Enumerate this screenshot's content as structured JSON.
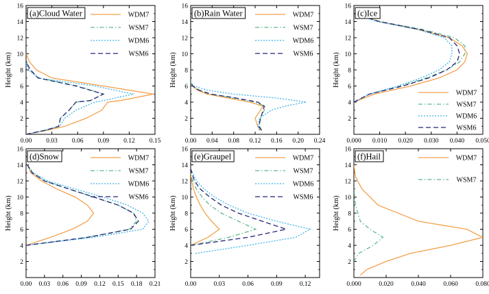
{
  "figure": {
    "ylabel": "Height (km)"
  },
  "style": {
    "WDM7": {
      "color": "#f4a04a",
      "dash": ""
    },
    "WSM7": {
      "color": "#5cb88a",
      "dash": "6 3 1.5 3"
    },
    "WDM6": {
      "color": "#39b4e6",
      "dash": "2 2"
    },
    "WSM6": {
      "color": "#23237a",
      "dash": "7 4"
    }
  },
  "chart_data": [
    {
      "type": "line",
      "title": "(a)Cloud Water",
      "ylabel": "Height (km)",
      "xlim": [
        0,
        0.15
      ],
      "ylim": [
        0,
        16
      ],
      "xticks": [
        "0.00",
        "0.03",
        "0.06",
        "0.09",
        "0.12",
        "0.15"
      ],
      "xtick_values": [
        0,
        0.03,
        0.06,
        0.09,
        0.12,
        0.15
      ],
      "yticks": [
        "2",
        "4",
        "6",
        "8",
        "10",
        "12",
        "14",
        "16"
      ],
      "legend_position": "top-right",
      "series": [
        {
          "name": "WDM7",
          "x": [
            0.0,
            0.025,
            0.045,
            0.07,
            0.088,
            0.095,
            0.11,
            0.148,
            0.09,
            0.03,
            0.012,
            0.004,
            0.0
          ],
          "y": [
            0,
            0.5,
            1,
            2,
            3,
            4,
            4.2,
            5,
            6,
            7,
            8,
            9,
            10
          ]
        },
        {
          "name": "WSM7",
          "x": [
            0.0,
            0.022,
            0.038,
            0.04,
            0.05,
            0.058,
            0.075,
            0.09,
            0.06,
            0.015,
            0.005,
            0.0
          ],
          "y": [
            0,
            0.5,
            1,
            2,
            3,
            4,
            4.2,
            5,
            6,
            7,
            8,
            9
          ]
        },
        {
          "name": "WDM6",
          "x": [
            0.0,
            0.022,
            0.039,
            0.045,
            0.058,
            0.08,
            0.09,
            0.125,
            0.08,
            0.014,
            0.003,
            0.0
          ],
          "y": [
            0,
            0.5,
            1,
            2,
            3,
            4,
            4.2,
            5,
            6,
            7,
            8,
            9
          ]
        },
        {
          "name": "WSM6",
          "x": [
            0.0,
            0.022,
            0.038,
            0.04,
            0.05,
            0.058,
            0.075,
            0.09,
            0.058,
            0.014,
            0.005,
            0.0
          ],
          "y": [
            0,
            0.5,
            1,
            2,
            3,
            4,
            4.2,
            5,
            6,
            7,
            8,
            9
          ]
        }
      ]
    },
    {
      "type": "line",
      "title": "(b)Rain Water",
      "ylabel": "Height (km)",
      "xlim": [
        0,
        0.24
      ],
      "ylim": [
        0,
        16
      ],
      "xticks": [
        "0.00",
        "0.04",
        "0.08",
        "0.12",
        "0.16",
        "0.20",
        "0.24"
      ],
      "xtick_values": [
        0,
        0.04,
        0.08,
        0.12,
        0.16,
        0.2,
        0.24
      ],
      "yticks": [
        "2",
        "4",
        "6",
        "8",
        "10",
        "12",
        "14",
        "16"
      ],
      "legend_position": "top-right",
      "series": [
        {
          "name": "WDM7",
          "x": [
            0.13,
            0.125,
            0.12,
            0.13,
            0.135,
            0.11,
            0.07,
            0.03,
            0.012,
            0.003,
            0.0
          ],
          "y": [
            0.5,
            1,
            2,
            3,
            3.5,
            4,
            4.5,
            5,
            5.5,
            6,
            6.5
          ]
        },
        {
          "name": "WSM7",
          "x": [
            0.132,
            0.128,
            0.13,
            0.137,
            0.138,
            0.12,
            0.08,
            0.035,
            0.015,
            0.004,
            0.0
          ],
          "y": [
            0.5,
            1,
            2,
            3,
            3.5,
            4,
            4.5,
            5,
            5.5,
            6,
            6.5
          ]
        },
        {
          "name": "WDM6",
          "x": [
            0.128,
            0.125,
            0.128,
            0.15,
            0.175,
            0.215,
            0.16,
            0.08,
            0.03,
            0.005,
            0.0
          ],
          "y": [
            0.5,
            1,
            2,
            3,
            3.5,
            4,
            4.5,
            5,
            5.5,
            6,
            6.5
          ]
        },
        {
          "name": "WSM6",
          "x": [
            0.132,
            0.127,
            0.13,
            0.135,
            0.137,
            0.125,
            0.085,
            0.038,
            0.015,
            0.004,
            0.0
          ],
          "y": [
            0.5,
            1,
            2,
            3,
            3.5,
            4,
            4.5,
            5,
            5.5,
            6,
            6.5
          ]
        }
      ]
    },
    {
      "type": "line",
      "title": "(c)Ice",
      "ylabel": "Height (km)",
      "xlim": [
        0,
        0.05
      ],
      "ylim": [
        0,
        16
      ],
      "xticks": [
        "0.000",
        "0.010",
        "0.020",
        "0.030",
        "0.040",
        "0.050"
      ],
      "xtick_values": [
        0,
        0.01,
        0.02,
        0.03,
        0.04,
        0.05
      ],
      "yticks": [
        "2",
        "4",
        "6",
        "8",
        "10",
        "12",
        "14",
        "16"
      ],
      "legend_position": "bottom-right",
      "series": [
        {
          "name": "WDM7",
          "x": [
            0.0,
            0.008,
            0.022,
            0.033,
            0.04,
            0.043,
            0.044,
            0.042,
            0.037,
            0.025,
            0.01,
            0.0
          ],
          "y": [
            4,
            5,
            6,
            7,
            8,
            9,
            10,
            11,
            12,
            13,
            14,
            15
          ]
        },
        {
          "name": "WSM7",
          "x": [
            0.0,
            0.006,
            0.018,
            0.028,
            0.036,
            0.041,
            0.043,
            0.043,
            0.039,
            0.027,
            0.01,
            0.0
          ],
          "y": [
            4,
            5,
            6,
            7,
            8,
            9,
            10,
            11,
            12,
            13,
            14,
            15
          ]
        },
        {
          "name": "WDM6",
          "x": [
            0.0,
            0.006,
            0.017,
            0.026,
            0.033,
            0.037,
            0.038,
            0.038,
            0.035,
            0.025,
            0.009,
            0.0
          ],
          "y": [
            4,
            5,
            6,
            7,
            8,
            9,
            10,
            11,
            12,
            13,
            14,
            15
          ]
        },
        {
          "name": "WSM6",
          "x": [
            0.0,
            0.006,
            0.019,
            0.029,
            0.036,
            0.04,
            0.041,
            0.04,
            0.037,
            0.026,
            0.01,
            0.0
          ],
          "y": [
            4,
            5,
            6,
            7,
            8,
            9,
            10,
            11,
            12,
            13,
            14,
            15
          ]
        }
      ]
    },
    {
      "type": "line",
      "title": "(d)Snow",
      "ylabel": "Height (km)",
      "xlim": [
        0,
        0.21
      ],
      "ylim": [
        0,
        16
      ],
      "xticks": [
        "0.00",
        "0.03",
        "0.06",
        "0.09",
        "0.12",
        "0.15",
        "0.18",
        "0.21"
      ],
      "xtick_values": [
        0,
        0.03,
        0.06,
        0.09,
        0.12,
        0.15,
        0.18,
        0.21
      ],
      "yticks": [
        "2",
        "4",
        "6",
        "8",
        "10",
        "12",
        "14",
        "16"
      ],
      "legend_position": "top-right",
      "series": [
        {
          "name": "WDM7",
          "x": [
            0.0,
            0.04,
            0.075,
            0.1,
            0.11,
            0.1,
            0.08,
            0.05,
            0.025,
            0.008,
            0.002
          ],
          "y": [
            4,
            5,
            6,
            7,
            8,
            9,
            10,
            11,
            12,
            13,
            14
          ]
        },
        {
          "name": "WSM7",
          "x": [
            0.0,
            0.1,
            0.168,
            0.18,
            0.175,
            0.15,
            0.11,
            0.07,
            0.03,
            0.01,
            0.002
          ],
          "y": [
            4,
            5,
            6,
            7,
            8,
            9,
            10,
            11,
            12,
            13,
            14
          ]
        },
        {
          "name": "WDM6",
          "x": [
            0.0,
            0.11,
            0.19,
            0.2,
            0.19,
            0.165,
            0.125,
            0.08,
            0.035,
            0.012,
            0.002
          ],
          "y": [
            4,
            5,
            6,
            7,
            8,
            9,
            10,
            11,
            12,
            13,
            14
          ]
        },
        {
          "name": "WSM6",
          "x": [
            0.0,
            0.1,
            0.17,
            0.183,
            0.175,
            0.15,
            0.11,
            0.07,
            0.03,
            0.01,
            0.002
          ],
          "y": [
            4,
            5,
            6,
            7,
            8,
            9,
            10,
            11,
            12,
            13,
            14
          ]
        }
      ]
    },
    {
      "type": "line",
      "title": "(e)Graupel",
      "ylabel": "Height (km)",
      "xlim": [
        0,
        0.135
      ],
      "ylim": [
        0,
        16
      ],
      "xticks": [
        "0.00",
        "0.03",
        "0.06",
        "0.09",
        "0.12"
      ],
      "xtick_values": [
        0,
        0.03,
        0.06,
        0.09,
        0.12
      ],
      "yticks": [
        "2",
        "4",
        "6",
        "8",
        "10",
        "12",
        "14",
        "16"
      ],
      "legend_position": "top-right",
      "series": [
        {
          "name": "WDM7",
          "x": [
            0.0,
            0.018,
            0.03,
            0.022,
            0.015,
            0.01,
            0.006,
            0.003,
            0.001,
            0.0
          ],
          "y": [
            4,
            5,
            6,
            7,
            8,
            9,
            10,
            11,
            12,
            13
          ]
        },
        {
          "name": "WSM7",
          "x": [
            0.0,
            0.04,
            0.068,
            0.05,
            0.032,
            0.02,
            0.012,
            0.006,
            0.002,
            0.0
          ],
          "y": [
            4,
            5,
            6,
            7,
            8,
            9,
            10,
            11,
            12,
            13
          ]
        },
        {
          "name": "WDM6",
          "x": [
            0.005,
            0.06,
            0.11,
            0.125,
            0.09,
            0.06,
            0.04,
            0.025,
            0.014,
            0.006,
            0.0
          ],
          "y": [
            3,
            4,
            5,
            6,
            7,
            8,
            9,
            10,
            11,
            12,
            13.5
          ]
        },
        {
          "name": "WSM6",
          "x": [
            0.0,
            0.06,
            0.1,
            0.075,
            0.05,
            0.032,
            0.02,
            0.01,
            0.004,
            0.0
          ],
          "y": [
            4,
            5,
            6,
            7,
            8,
            9,
            10,
            11,
            12,
            13.5
          ]
        }
      ]
    },
    {
      "type": "line",
      "title": "(f)Hail",
      "ylabel": "Height (km)",
      "xlim": [
        0,
        0.08
      ],
      "ylim": [
        0,
        16
      ],
      "xticks": [
        "0.000",
        "0.020",
        "0.040",
        "0.060",
        "0.080"
      ],
      "xtick_values": [
        0,
        0.02,
        0.04,
        0.06,
        0.08
      ],
      "yticks": [
        "2",
        "4",
        "6",
        "8",
        "10",
        "12",
        "14",
        "16"
      ],
      "legend_position": "top-right",
      "series": [
        {
          "name": "WDM7",
          "x": [
            0.004,
            0.008,
            0.02,
            0.035,
            0.06,
            0.08,
            0.07,
            0.04,
            0.015,
            0.005,
            0.001,
            0.0
          ],
          "y": [
            0.3,
            1,
            2,
            3,
            4,
            5,
            6,
            7,
            9,
            11,
            12.5,
            14
          ]
        },
        {
          "name": "WSM7",
          "x": [
            0.0,
            0.003,
            0.012,
            0.018,
            0.01,
            0.004,
            0.001,
            0.0
          ],
          "y": [
            2,
            3,
            4,
            5,
            6,
            7,
            9,
            11
          ]
        }
      ]
    }
  ]
}
